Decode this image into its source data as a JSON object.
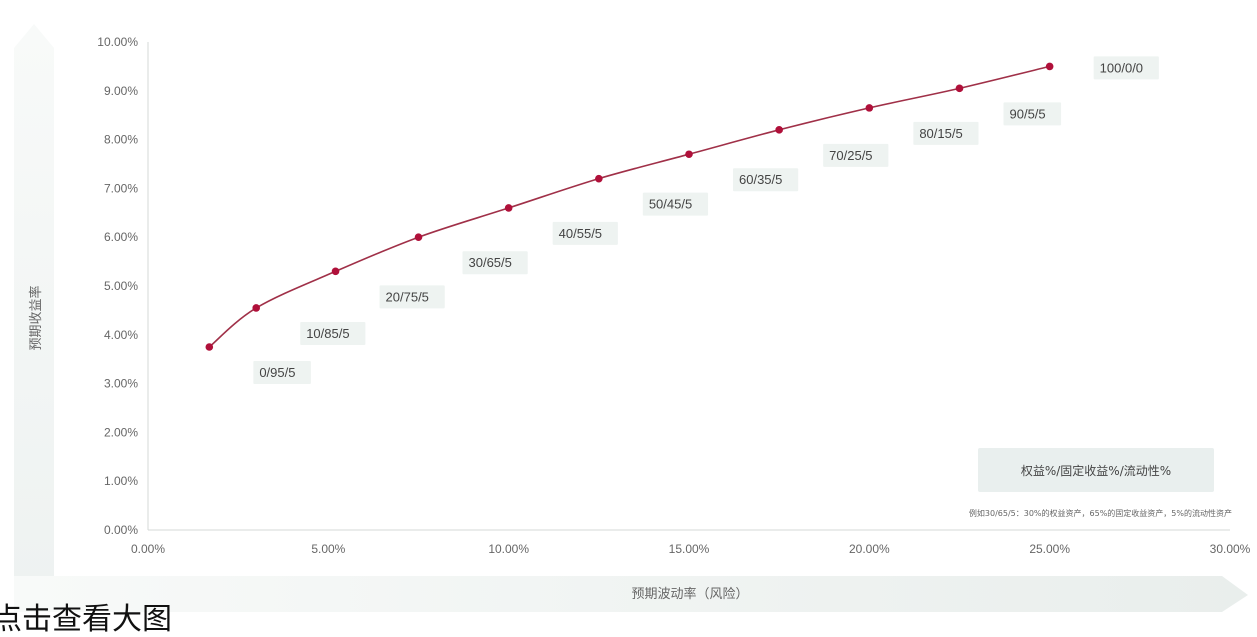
{
  "chart_data": {
    "type": "line",
    "xlabel": "预期波动率（风险）",
    "ylabel": "预期收益率",
    "x_ticks": [
      "0.00%",
      "5.00%",
      "10.00%",
      "15.00%",
      "20.00%",
      "25.00%",
      "30.00%"
    ],
    "y_ticks": [
      "0.00%",
      "1.00%",
      "2.00%",
      "3.00%",
      "4.00%",
      "5.00%",
      "6.00%",
      "7.00%",
      "8.00%",
      "9.00%",
      "10.00%"
    ],
    "xlim": [
      0,
      30
    ],
    "ylim": [
      0,
      10
    ],
    "grid": false,
    "marker_color": "#b0103a",
    "line_color": "#a03048",
    "points": [
      {
        "label": "0/95/5",
        "x": 1.7,
        "y": 3.75
      },
      {
        "label": "10/85/5",
        "x": 3.0,
        "y": 4.55
      },
      {
        "label": "20/75/5",
        "x": 5.2,
        "y": 5.3
      },
      {
        "label": "30/65/5",
        "x": 7.5,
        "y": 6.0
      },
      {
        "label": "40/55/5",
        "x": 10.0,
        "y": 6.6
      },
      {
        "label": "50/45/5",
        "x": 12.5,
        "y": 7.2
      },
      {
        "label": "60/35/5",
        "x": 15.0,
        "y": 7.7
      },
      {
        "label": "70/25/5",
        "x": 17.5,
        "y": 8.2
      },
      {
        "label": "80/15/5",
        "x": 20.0,
        "y": 8.65
      },
      {
        "label": "90/5/5",
        "x": 22.5,
        "y": 9.05
      },
      {
        "label": "100/0/0",
        "x": 25.0,
        "y": 9.5
      }
    ],
    "legend": {
      "placement": "bottom-right",
      "title": "权益%/固定收益%/流动性%",
      "note": "例如30/65/5：30%的权益资产，65%的固定收益资产，5%的流动性资产"
    }
  },
  "caption": "点击查看大图"
}
